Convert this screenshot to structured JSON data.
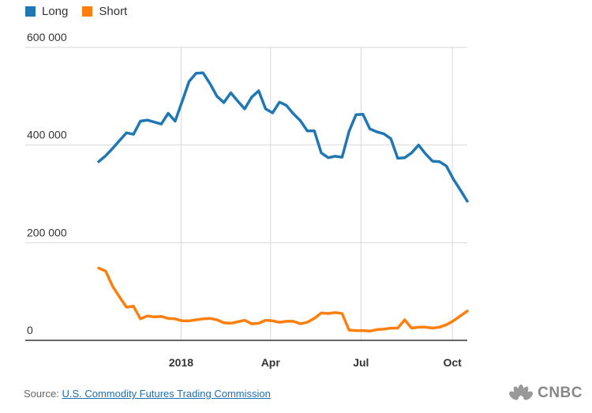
{
  "legend": [
    {
      "label": "Long",
      "color": "#1f77b4"
    },
    {
      "label": "Short",
      "color": "#ff7f0e"
    }
  ],
  "source": {
    "prefix": "Source:",
    "link_text": "U.S. Commodity Futures Trading Commission"
  },
  "brand": {
    "text": "CNBC",
    "icon": "peacock-icon"
  },
  "chart_data": {
    "type": "line",
    "title": "",
    "xlabel": "",
    "ylabel": "",
    "ylim": [
      0,
      600000
    ],
    "y_ticks": [
      0,
      200000,
      400000,
      600000
    ],
    "y_tick_labels": [
      "0",
      "200 000",
      "400 000",
      "600 000"
    ],
    "x_ticks": [
      {
        "label": "2018",
        "x": "2018-01-01"
      },
      {
        "label": "Apr",
        "x": "2018-04-01"
      },
      {
        "label": "Jul",
        "x": "2018-07-01"
      },
      {
        "label": "Oct",
        "x": "2018-10-01"
      }
    ],
    "grid": {
      "x": true,
      "y": true
    },
    "legend_position": "top-left",
    "x": [
      "2017-10-10",
      "2017-10-17",
      "2017-10-24",
      "2017-10-31",
      "2017-11-07",
      "2017-11-14",
      "2017-11-21",
      "2017-11-28",
      "2017-12-05",
      "2017-12-12",
      "2017-12-19",
      "2017-12-26",
      "2018-01-02",
      "2018-01-09",
      "2018-01-16",
      "2018-01-23",
      "2018-01-30",
      "2018-02-06",
      "2018-02-13",
      "2018-02-20",
      "2018-02-27",
      "2018-03-06",
      "2018-03-13",
      "2018-03-20",
      "2018-03-27",
      "2018-04-03",
      "2018-04-10",
      "2018-04-17",
      "2018-04-24",
      "2018-05-01",
      "2018-05-08",
      "2018-05-15",
      "2018-05-22",
      "2018-05-29",
      "2018-06-05",
      "2018-06-12",
      "2018-06-19",
      "2018-06-26",
      "2018-07-03",
      "2018-07-10",
      "2018-07-17",
      "2018-07-24",
      "2018-07-31",
      "2018-08-07",
      "2018-08-14",
      "2018-08-21",
      "2018-08-28",
      "2018-09-04",
      "2018-09-11",
      "2018-09-18",
      "2018-09-25",
      "2018-10-02",
      "2018-10-09",
      "2018-10-16"
    ],
    "series": [
      {
        "name": "Long",
        "color": "#1f77b4",
        "values": [
          366000,
          378000,
          393000,
          409000,
          425000,
          422000,
          449000,
          451000,
          447000,
          443000,
          465000,
          449000,
          489000,
          530000,
          547000,
          548000,
          526000,
          500000,
          487000,
          507000,
          490000,
          474000,
          498000,
          511000,
          474000,
          466000,
          488000,
          481000,
          464000,
          450000,
          429000,
          429000,
          384000,
          374000,
          377000,
          375000,
          428000,
          462000,
          463000,
          433000,
          427000,
          423000,
          413000,
          373000,
          374000,
          384000,
          400000,
          382000,
          367000,
          366000,
          357000,
          330000,
          308000,
          285000
        ]
      },
      {
        "name": "Short",
        "color": "#ff7f0e",
        "values": [
          148000,
          142000,
          111000,
          89000,
          68000,
          70000,
          44000,
          50000,
          48000,
          49000,
          45000,
          44000,
          40000,
          40000,
          42000,
          44000,
          45000,
          42000,
          36000,
          35000,
          38000,
          41000,
          34000,
          35000,
          41000,
          40000,
          37000,
          39000,
          39000,
          34000,
          37000,
          45000,
          56000,
          55000,
          57000,
          55000,
          21000,
          20000,
          20000,
          19000,
          22000,
          23000,
          25000,
          25000,
          42000,
          25000,
          27000,
          27000,
          25000,
          27000,
          32000,
          40000,
          50000,
          60000
        ]
      }
    ]
  }
}
